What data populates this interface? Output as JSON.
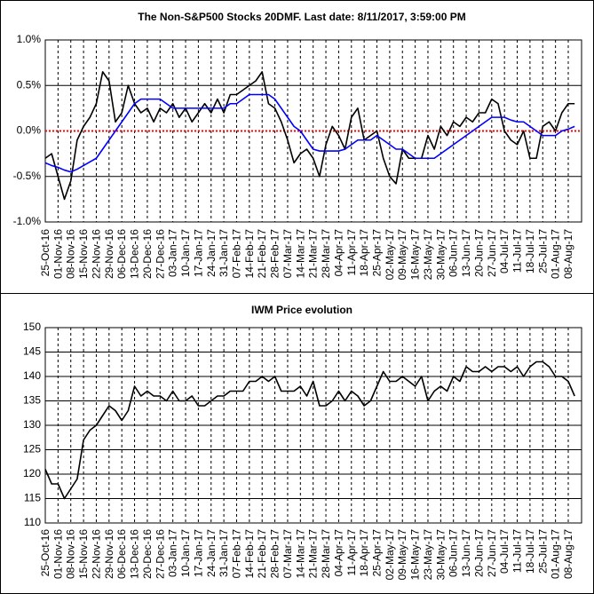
{
  "chart_data": [
    {
      "type": "line",
      "title": "The Non-S&P500 Stocks 20DMF. Last date: 8/11/2017, 3:59:00 PM",
      "categories": [
        "25-Oct-16",
        null,
        "01-Nov-16",
        null,
        "08-Nov-16",
        null,
        "15-Nov-16",
        null,
        "22-Nov-16",
        null,
        "29-Nov-16",
        null,
        "06-Dec-16",
        null,
        "13-Dec-16",
        null,
        "20-Dec-16",
        null,
        "27-Dec-16",
        null,
        "03-Jan-17",
        null,
        "10-Jan-17",
        null,
        "17-Jan-17",
        null,
        "24-Jan-17",
        null,
        "31-Jan-17",
        null,
        "07-Feb-17",
        null,
        "14-Feb-17",
        null,
        "21-Feb-17",
        null,
        "28-Feb-17",
        null,
        "07-Mar-17",
        null,
        "14-Mar-17",
        null,
        "21-Mar-17",
        null,
        "28-Mar-17",
        null,
        "04-Apr-17",
        null,
        "11-Apr-17",
        null,
        "18-Apr-17",
        null,
        "25-Apr-17",
        null,
        "02-May-17",
        null,
        "09-May-17",
        null,
        "16-May-17",
        null,
        "23-May-17",
        null,
        "30-May-17",
        null,
        "06-Jun-17",
        null,
        "13-Jun-17",
        null,
        "20-Jun-17",
        null,
        "27-Jun-17",
        null,
        "04-Jul-17",
        null,
        "11-Jul-17",
        null,
        "18-Jul-17",
        null,
        "25-Jul-17",
        null,
        "01-Aug-17",
        null,
        "08-Aug-17",
        null
      ],
      "series": [
        {
          "color": "#000000",
          "values": [
            -0.3,
            -0.25,
            -0.5,
            -0.75,
            -0.55,
            -0.1,
            0.05,
            0.15,
            0.3,
            0.65,
            0.55,
            0.1,
            0.2,
            0.5,
            0.3,
            0.2,
            0.25,
            0.1,
            0.25,
            0.2,
            0.3,
            0.15,
            0.25,
            0.1,
            0.2,
            0.3,
            0.2,
            0.35,
            0.2,
            0.4,
            0.4,
            0.45,
            0.5,
            0.55,
            0.65,
            0.3,
            0.25,
            0.1,
            -0.1,
            -0.35,
            -0.25,
            -0.2,
            -0.3,
            -0.5,
            -0.15,
            0.05,
            -0.05,
            -0.2,
            0.15,
            0.25,
            -0.1,
            -0.05,
            0.0,
            -0.3,
            -0.5,
            -0.58,
            -0.2,
            -0.3,
            -0.3,
            -0.3,
            -0.05,
            -0.2,
            0.05,
            -0.05,
            0.1,
            0.05,
            0.15,
            0.1,
            0.2,
            0.2,
            0.35,
            0.3,
            0.0,
            -0.1,
            -0.15,
            0.0,
            -0.3,
            -0.3,
            0.05,
            0.1,
            0.0,
            0.2,
            0.3,
            0.3
          ]
        },
        {
          "color": "#0000ff",
          "values": [
            -0.35,
            -0.38,
            -0.4,
            -0.43,
            -0.45,
            -0.42,
            -0.38,
            -0.34,
            -0.3,
            -0.2,
            -0.1,
            0.0,
            0.1,
            0.2,
            0.3,
            0.35,
            0.35,
            0.35,
            0.35,
            0.3,
            0.25,
            0.25,
            0.25,
            0.25,
            0.25,
            0.25,
            0.25,
            0.25,
            0.25,
            0.3,
            0.3,
            0.35,
            0.4,
            0.4,
            0.4,
            0.4,
            0.35,
            0.25,
            0.15,
            0.05,
            0.0,
            -0.1,
            -0.2,
            -0.22,
            -0.22,
            -0.22,
            -0.22,
            -0.2,
            -0.15,
            -0.1,
            -0.1,
            -0.1,
            -0.05,
            -0.1,
            -0.15,
            -0.2,
            -0.2,
            -0.25,
            -0.3,
            -0.3,
            -0.3,
            -0.3,
            -0.25,
            -0.2,
            -0.15,
            -0.1,
            -0.05,
            0.0,
            0.05,
            0.1,
            0.15,
            0.15,
            0.15,
            0.12,
            0.1,
            0.1,
            0.05,
            0.0,
            -0.05,
            -0.05,
            -0.05,
            0.0,
            0.02,
            0.05
          ]
        }
      ],
      "ylim": [
        -1.0,
        1.0
      ],
      "yticks": [
        {
          "value": -1.0,
          "label": "-1.0%"
        },
        {
          "value": -0.5,
          "label": "-0.5%"
        },
        {
          "value": 0.0,
          "label": "0.0%"
        },
        {
          "value": 0.5,
          "label": "0.5%"
        },
        {
          "value": 1.0,
          "label": "1.0%"
        }
      ],
      "grid": true,
      "zero_line_color": "#ff0000"
    },
    {
      "type": "line",
      "title": "IWM Price evolution",
      "categories": [
        "25-Oct-16",
        null,
        "01-Nov-16",
        null,
        "08-Nov-16",
        null,
        "15-Nov-16",
        null,
        "22-Nov-16",
        null,
        "29-Nov-16",
        null,
        "06-Dec-16",
        null,
        "13-Dec-16",
        null,
        "20-Dec-16",
        null,
        "27-Dec-16",
        null,
        "03-Jan-17",
        null,
        "10-Jan-17",
        null,
        "17-Jan-17",
        null,
        "24-Jan-17",
        null,
        "31-Jan-17",
        null,
        "07-Feb-17",
        null,
        "14-Feb-17",
        null,
        "21-Feb-17",
        null,
        "28-Feb-17",
        null,
        "07-Mar-17",
        null,
        "14-Mar-17",
        null,
        "21-Mar-17",
        null,
        "28-Mar-17",
        null,
        "04-Apr-17",
        null,
        "11-Apr-17",
        null,
        "18-Apr-17",
        null,
        "25-Apr-17",
        null,
        "02-May-17",
        null,
        "09-May-17",
        null,
        "16-May-17",
        null,
        "23-May-17",
        null,
        "30-May-17",
        null,
        "06-Jun-17",
        null,
        "13-Jun-17",
        null,
        "20-Jun-17",
        null,
        "27-Jun-17",
        null,
        "04-Jul-17",
        null,
        "11-Jul-17",
        null,
        "18-Jul-17",
        null,
        "25-Jul-17",
        null,
        "01-Aug-17",
        null,
        "08-Aug-17",
        null
      ],
      "series": [
        {
          "color": "#000000",
          "values": [
            121,
            118,
            118,
            115,
            117,
            119,
            127,
            129,
            130,
            132,
            134,
            133,
            131,
            133,
            138,
            136,
            137,
            136,
            136,
            135,
            137,
            135,
            135,
            136,
            134,
            134,
            135,
            136,
            136,
            137,
            137,
            137,
            139,
            139,
            140,
            139,
            140,
            137,
            137,
            137,
            138,
            136,
            139,
            134,
            134,
            135,
            137,
            135,
            137,
            136,
            134,
            135,
            138,
            141,
            139,
            139,
            140,
            139,
            138,
            140,
            135,
            137,
            138,
            137,
            140,
            139,
            142,
            141,
            141,
            142,
            141,
            142,
            142,
            141,
            142,
            140,
            142,
            143,
            143,
            142,
            140,
            140,
            139,
            136
          ]
        }
      ],
      "ylim": [
        110,
        150
      ],
      "yticks": [
        110,
        115,
        120,
        125,
        130,
        135,
        140,
        145,
        150
      ],
      "grid": true
    }
  ]
}
